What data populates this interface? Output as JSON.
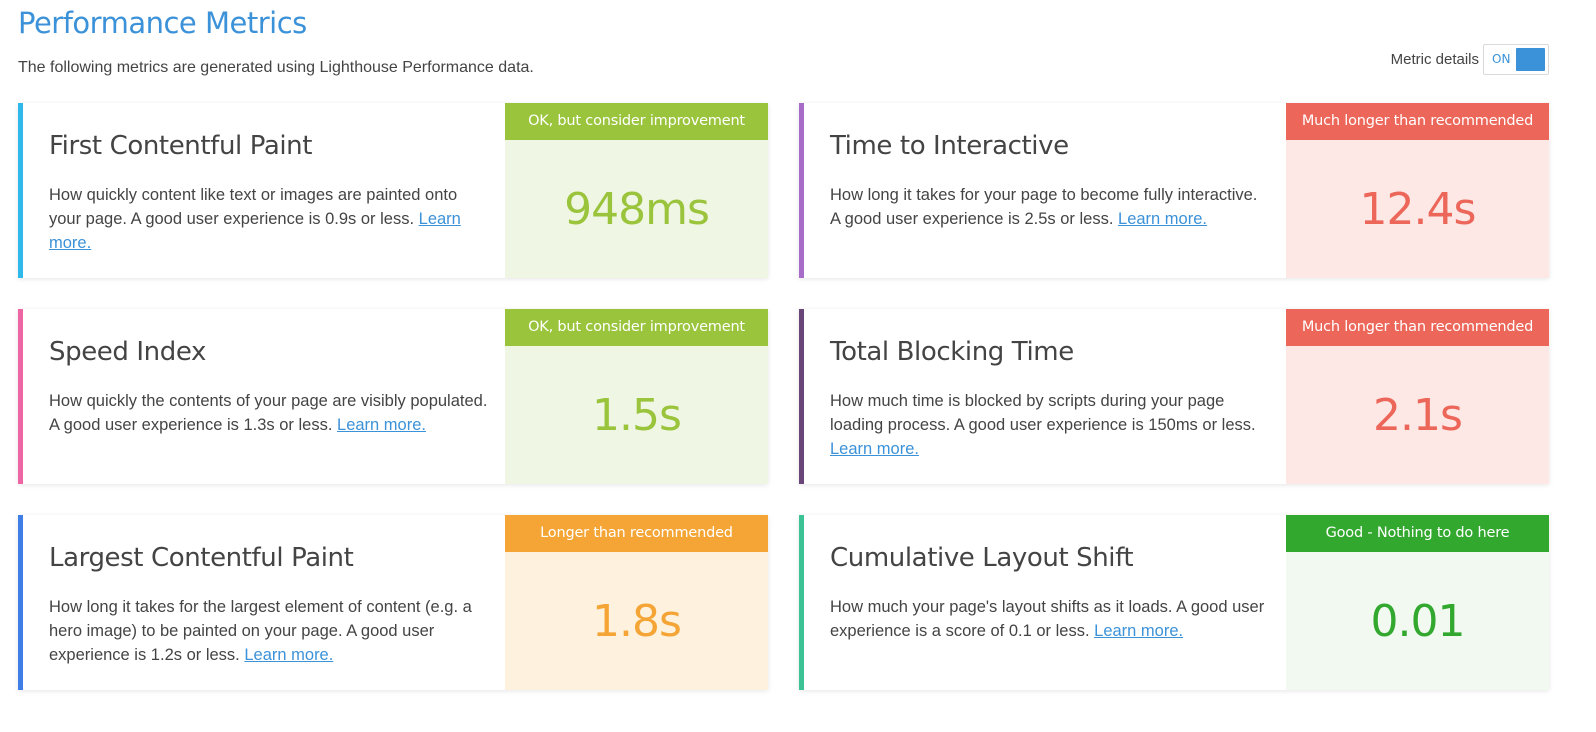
{
  "header": {
    "title": "Performance Metrics",
    "subtitle": "The following metrics are generated using Lighthouse Performance data.",
    "toggle_label": "Metric details",
    "toggle_state": "ON"
  },
  "metrics": [
    {
      "name": "First Contentful Paint",
      "description": "How quickly content like text or images are painted onto your page. A good user experience is 0.9s or less.",
      "link": "Learn more.",
      "badge": "OK, but consider improvement",
      "value": "948ms",
      "accent_color": "#2fb8ea",
      "badge_color": "#9ac43c",
      "panel_bg": "#f0f6e4",
      "value_color": "#9ac43c"
    },
    {
      "name": "Time to Interactive",
      "description": "How long it takes for your page to become fully interactive. A good user experience is 2.5s or less.",
      "link": "Learn more.",
      "badge": "Much longer than recommended",
      "value": "12.4s",
      "accent_color": "#a66cc8",
      "badge_color": "#ec6659",
      "panel_bg": "#fde8e6",
      "value_color": "#ec6659"
    },
    {
      "name": "Speed Index",
      "description": "How quickly the contents of your page are visibly populated. A good user experience is 1.3s or less.",
      "link": "Learn more.",
      "badge": "OK, but consider improvement",
      "value": "1.5s",
      "accent_color": "#ee65a3",
      "badge_color": "#9ac43c",
      "panel_bg": "#f0f6e4",
      "value_color": "#9ac43c"
    },
    {
      "name": "Total Blocking Time",
      "description": "How much time is blocked by scripts during your page loading process. A good user experience is 150ms or less.",
      "link": "Learn more.",
      "badge": "Much longer than recommended",
      "value": "2.1s",
      "accent_color": "#6a4577",
      "badge_color": "#ec6659",
      "panel_bg": "#fde8e6",
      "value_color": "#ec6659"
    },
    {
      "name": "Largest Contentful Paint",
      "description": "How long it takes for the largest element of content (e.g. a hero image) to be painted on your page. A good user experience is 1.2s or less.",
      "link": "Learn more.",
      "badge": "Longer than recommended",
      "value": "1.8s",
      "accent_color": "#3f7ee6",
      "badge_color": "#f4a535",
      "panel_bg": "#fef2de",
      "value_color": "#f4a535"
    },
    {
      "name": "Cumulative Layout Shift",
      "description": "How much your page's layout shifts as it loads. A good user experience is a score of 0.1 or less.",
      "link": "Learn more.",
      "badge": "Good - Nothing to do here",
      "value": "0.01",
      "accent_color": "#3cc295",
      "badge_color": "#33a82f",
      "panel_bg": "#f1f9f0",
      "value_color": "#33a82f"
    }
  ]
}
